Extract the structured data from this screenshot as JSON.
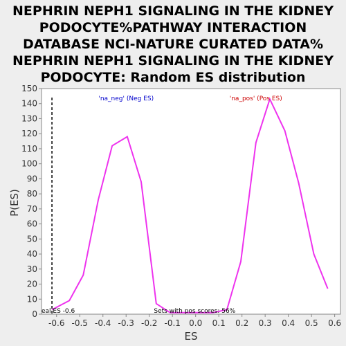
{
  "chart_data": {
    "type": "line",
    "title_lines": [
      "NEPHRIN NEPH1 SIGNALING IN THE KIDNEY",
      "PODOCYTE%PATHWAY INTERACTION",
      "DATABASE NCI-NATURE CURATED DATA%",
      "NEPHRIN NEPH1 SIGNALING IN THE KIDNEY",
      "PODOCYTE: Random ES distribution"
    ],
    "xlabel": "ES",
    "ylabel": "P(ES)",
    "xlim": [
      -0.665,
      0.625
    ],
    "ylim": [
      0,
      150
    ],
    "x_ticks": [
      "-0.6",
      "-0.5",
      "-0.4",
      "-0.3",
      "-0.2",
      "-0.1",
      "0.0",
      "0.1",
      "0.2",
      "0.3",
      "0.4",
      "0.5",
      "0.6"
    ],
    "x_tick_values": [
      -0.6,
      -0.5,
      -0.4,
      -0.3,
      -0.2,
      -0.1,
      0.0,
      0.1,
      0.2,
      0.3,
      0.4,
      0.5,
      0.6
    ],
    "y_ticks": [
      0,
      10,
      20,
      30,
      40,
      50,
      60,
      70,
      80,
      90,
      100,
      110,
      120,
      130,
      140,
      150
    ],
    "series": [
      {
        "color": "#ee33ee",
        "x": [
          -0.62,
          -0.545,
          -0.485,
          -0.42,
          -0.36,
          -0.295,
          -0.235,
          -0.17,
          -0.11,
          -0.05,
          0.01,
          0.075,
          0.135,
          0.195,
          0.26,
          0.32,
          0.385,
          0.445,
          0.51,
          0.57
        ],
        "y": [
          3,
          9,
          26,
          76,
          112,
          118,
          88,
          7,
          1,
          1,
          1,
          1,
          3,
          35,
          114,
          143,
          122,
          87,
          40,
          17
        ]
      }
    ],
    "legend": [
      {
        "text": "'na_neg' (Neg ES)",
        "color": "#0000cc",
        "x": -0.3
      },
      {
        "text": "'na_pos' (Pos ES)",
        "color": "#cc0000",
        "x": 0.26
      }
    ],
    "actual_es_line": {
      "x": -0.62,
      "style": "dashed",
      "color": "#000000"
    },
    "annotations": [
      {
        "text": "eal ES -0.6",
        "x": -0.665
      },
      {
        "text": "Sets with pos scores: 56%",
        "x": -0.18
      }
    ],
    "grid": false
  }
}
